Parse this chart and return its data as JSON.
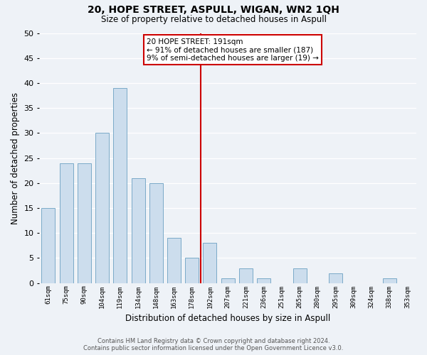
{
  "title": "20, HOPE STREET, ASPULL, WIGAN, WN2 1QH",
  "subtitle": "Size of property relative to detached houses in Aspull",
  "xlabel": "Distribution of detached houses by size in Aspull",
  "ylabel": "Number of detached properties",
  "bar_color": "#ccdded",
  "bar_edge_color": "#7aaac8",
  "background_color": "#eef2f7",
  "grid_color": "#ffffff",
  "categories": [
    "61sqm",
    "75sqm",
    "90sqm",
    "104sqm",
    "119sqm",
    "134sqm",
    "148sqm",
    "163sqm",
    "178sqm",
    "192sqm",
    "207sqm",
    "221sqm",
    "236sqm",
    "251sqm",
    "265sqm",
    "280sqm",
    "295sqm",
    "309sqm",
    "324sqm",
    "338sqm",
    "353sqm"
  ],
  "values": [
    15,
    24,
    24,
    30,
    39,
    21,
    20,
    9,
    5,
    8,
    1,
    3,
    1,
    0,
    3,
    0,
    2,
    0,
    0,
    1,
    0
  ],
  "ylim": [
    0,
    50
  ],
  "yticks": [
    0,
    5,
    10,
    15,
    20,
    25,
    30,
    35,
    40,
    45,
    50
  ],
  "vline_x_index": 9,
  "vline_color": "#cc0000",
  "annotation_title": "20 HOPE STREET: 191sqm",
  "annotation_line1": "← 91% of detached houses are smaller (187)",
  "annotation_line2": "9% of semi-detached houses are larger (19) →",
  "annotation_box_color": "#ffffff",
  "annotation_box_edge": "#cc0000",
  "footer_line1": "Contains HM Land Registry data © Crown copyright and database right 2024.",
  "footer_line2": "Contains public sector information licensed under the Open Government Licence v3.0."
}
